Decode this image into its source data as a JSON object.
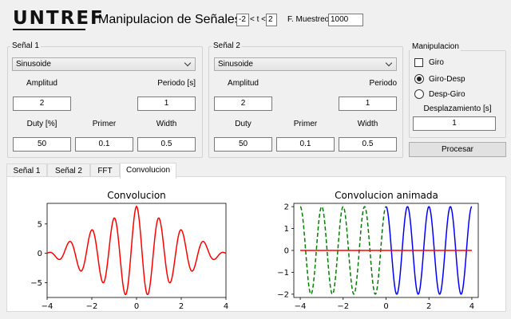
{
  "header": {
    "logo_text": "UNTREF",
    "title": "Manipulacion de Señales",
    "t_min": "-2",
    "t_sep": "< t <",
    "t_max": "2",
    "fs_label": "F. Muestreo",
    "fs_value": "1000"
  },
  "signal1": {
    "group_title": "Señal 1",
    "waveform": "Sinusoide",
    "amplitude_label": "Amplitud",
    "amplitude_value": "2",
    "period_label": "Periodo [s]",
    "period_value": "1",
    "duty_label": "Duty [%]",
    "duty_value": "50",
    "first_label": "Primer",
    "first_value": "0.1",
    "width_label": "Width",
    "width_value": "0.5"
  },
  "signal2": {
    "group_title": "Señal 2",
    "waveform": "Sinusoide",
    "amplitude_label": "Amplitud",
    "amplitude_value": "2",
    "period_label": "Periodo",
    "period_value": "1",
    "duty_label": "Duty",
    "duty_value": "50",
    "first_label": "Primer",
    "first_value": "0.1",
    "width_label": "Width",
    "width_value": "0.5"
  },
  "manip": {
    "group_title": "Manipulacion",
    "giro_label": "Giro",
    "giro_checked": false,
    "giro_desp_label": "Giro-Desp",
    "giro_desp_selected": true,
    "desp_giro_label": "Desp-Giro",
    "desp_giro_selected": false,
    "shift_label": "Desplazamiento [s]",
    "shift_value": "1",
    "process_label": "Procesar"
  },
  "tabs": [
    {
      "label": "Señal 1"
    },
    {
      "label": "Señal 2"
    },
    {
      "label": "FFT"
    },
    {
      "label": "Convolucion",
      "active": true
    }
  ],
  "colors": {
    "conv_line": "#ff0000",
    "anim_green": "#008000",
    "anim_blue": "#0000ff",
    "anim_red": "#ff0000"
  },
  "chart_data": [
    {
      "type": "line",
      "title": "Convolucion",
      "xlim": [
        -4,
        4
      ],
      "ylim": [
        -7.5,
        8.5
      ],
      "xticks": [
        "−4",
        "−2",
        "0",
        "2",
        "4"
      ],
      "yticks": [
        "5",
        "0",
        "−5"
      ],
      "ytick_values": [
        5,
        0,
        -5
      ],
      "xtick_values": [
        -4,
        -2,
        0,
        2,
        4
      ],
      "series": [
        {
          "color": "#ff0000",
          "function": "cos(2πx)·8·(1 − |x|/4)",
          "x_range": [
            -4,
            4
          ]
        }
      ]
    },
    {
      "type": "line",
      "title": "Convolucion animada",
      "xlim": [
        -4.3,
        4.3
      ],
      "ylim": [
        -2.15,
        2.15
      ],
      "xticks": [
        "−4",
        "−2",
        "0",
        "2",
        "4"
      ],
      "yticks": [
        "2",
        "1",
        "0",
        "−1",
        "−2"
      ],
      "ytick_values": [
        2,
        1,
        0,
        -1,
        -2
      ],
      "xtick_values": [
        -4,
        -2,
        0,
        2,
        4
      ],
      "series": [
        {
          "color": "#008000",
          "style": "dashed",
          "function": "2cos(2πx)",
          "x_range": [
            -4,
            0
          ]
        },
        {
          "color": "#0000ff",
          "style": "solid",
          "function": "2cos(2πx)",
          "x_range": [
            0,
            4
          ]
        },
        {
          "color": "#ff0000",
          "style": "solid",
          "function": "0",
          "x_range": [
            -4,
            4
          ]
        }
      ]
    }
  ]
}
